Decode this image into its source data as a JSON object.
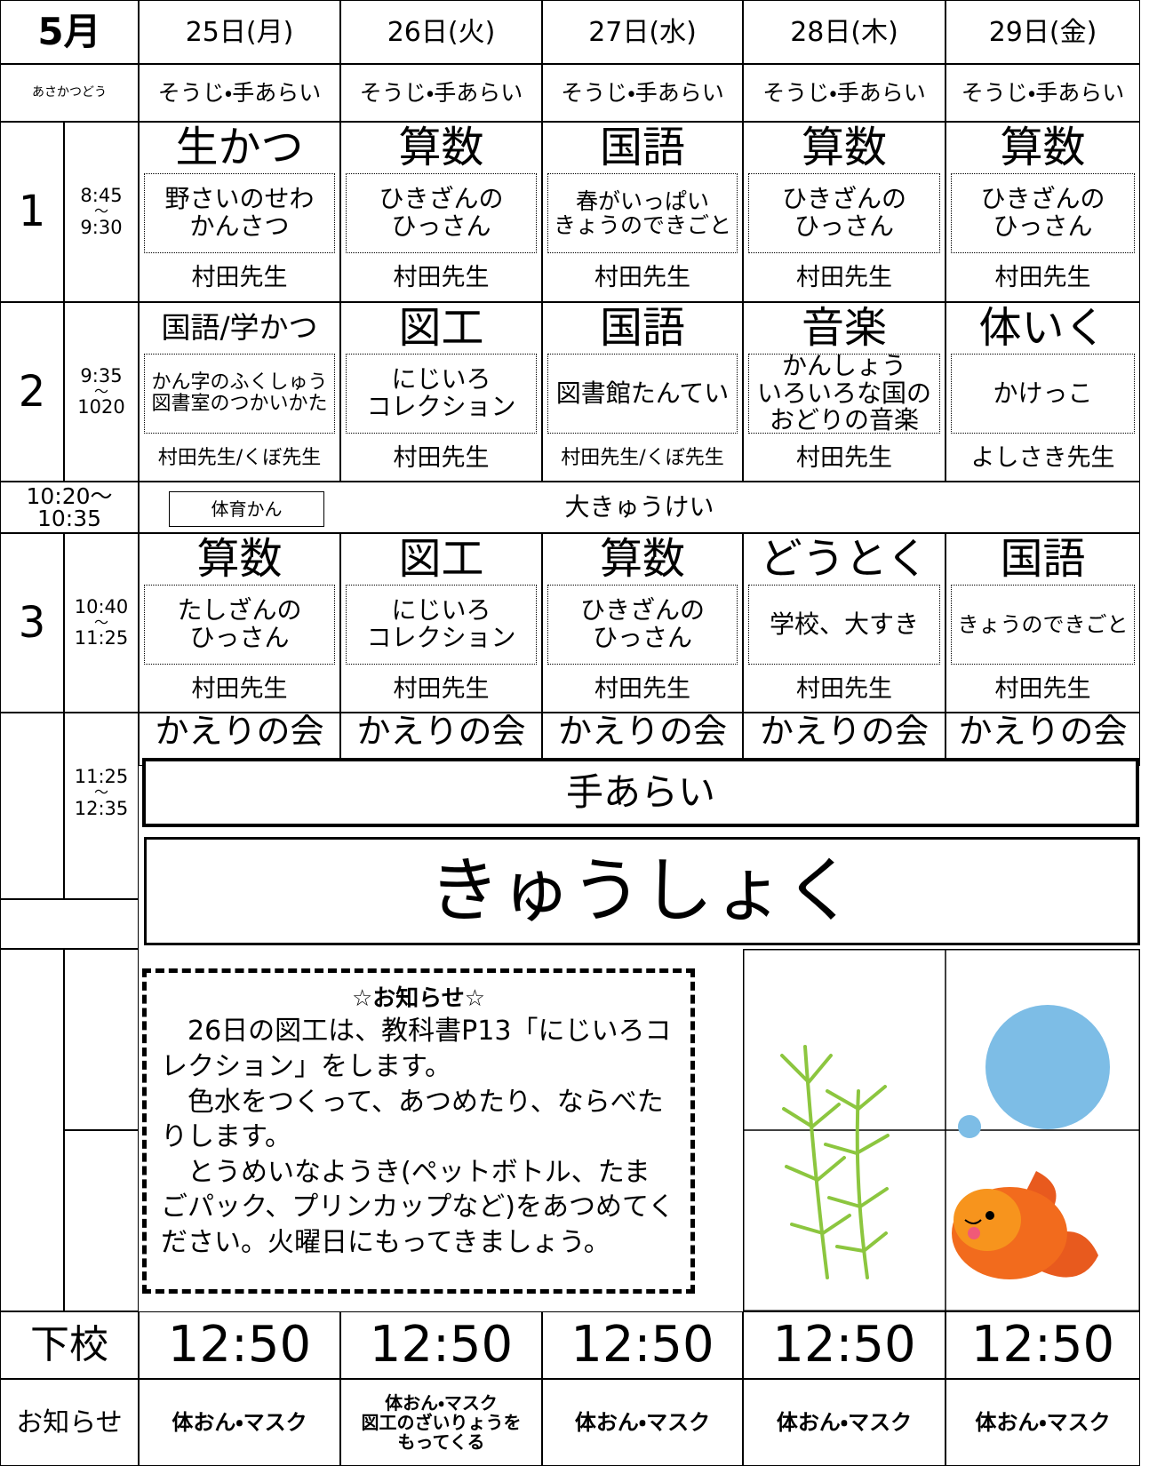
{
  "header": {
    "month": "5月",
    "days": [
      "25日(月)",
      "26日(火)",
      "27日(水)",
      "28日(木)",
      "29日(金)"
    ]
  },
  "morning": {
    "label": "あさかつどう",
    "items": [
      "そうじ・手あらい",
      "そうじ・手あらい",
      "そうじ・手あらい",
      "そうじ・手あらい",
      "そうじ・手あらい"
    ]
  },
  "periods": [
    {
      "number": "1",
      "time_start": "8:45",
      "tilde": "～",
      "time_end": "9:30",
      "classes": [
        {
          "subject": "生かつ",
          "content": "野さいのせわ\nかんさつ",
          "teacher": "村田先生"
        },
        {
          "subject": "算数",
          "content": "ひきざんの\nひっさん",
          "teacher": "村田先生"
        },
        {
          "subject": "国語",
          "content": "春がいっぱい\nきょうのできごと",
          "teacher": "村田先生"
        },
        {
          "subject": "算数",
          "content": "ひきざんの\nひっさん",
          "teacher": "村田先生"
        },
        {
          "subject": "算数",
          "content": "ひきざんの\nひっさん",
          "teacher": "村田先生"
        }
      ]
    },
    {
      "number": "2",
      "time_start": "9:35",
      "tilde": "～",
      "time_end": "1020",
      "classes": [
        {
          "subject": "国語/学かつ",
          "content": "かん字のふくしゅう\n図書室のつかいかた",
          "teacher": "村田先生/くぼ先生"
        },
        {
          "subject": "図工",
          "content": "にじいろ\nコレクション",
          "teacher": "村田先生"
        },
        {
          "subject": "国語",
          "content": "図書館たんてい",
          "teacher": "村田先生/くぼ先生"
        },
        {
          "subject": "音楽",
          "content": "かんしょう\nいろいろな国の\nおどりの音楽",
          "teacher": "村田先生"
        },
        {
          "subject": "体いく",
          "content": "かけっこ",
          "teacher": "よしさき先生"
        }
      ]
    },
    {
      "number": "3",
      "time_start": "10:40",
      "tilde": "～",
      "time_end": "11:25",
      "classes": [
        {
          "subject": "算数",
          "content": "たしざんの\nひっさん",
          "teacher": "村田先生"
        },
        {
          "subject": "図工",
          "content": "にじいろ\nコレクション",
          "teacher": "村田先生"
        },
        {
          "subject": "算数",
          "content": "ひきざんの\nひっさん",
          "teacher": "村田先生"
        },
        {
          "subject": "どうとく",
          "content": "学校、大すき",
          "teacher": "村田先生"
        },
        {
          "subject": "国語",
          "content": "きょうのできごと",
          "teacher": "村田先生"
        }
      ]
    }
  ],
  "break": {
    "time": "10:20～\n10:35",
    "place": "体育かん",
    "label": "大きゅうけい"
  },
  "lunch": {
    "time_start": "11:25",
    "tilde": "～",
    "time_end": "12:35",
    "closing": [
      "かえりの会",
      "かえりの会",
      "かえりの会",
      "かえりの会",
      "かえりの会"
    ],
    "handwash": "手あらい",
    "meal": "きゅうしょく"
  },
  "notice": {
    "title": "☆お知らせ☆",
    "paragraphs": [
      "26日の図工は、教科書P13「にじいろコレクション」をします。",
      "色水をつくって、あつめたり、ならべたりします。",
      "とうめいなようき(ペットボトル、たまごパック、プリンカップなど)をあつめてください。火曜日にもってきましょう。"
    ]
  },
  "dismissal": {
    "label": "下校",
    "times": [
      "12:50",
      "12:50",
      "12:50",
      "12:50",
      "12:50"
    ]
  },
  "reminders": {
    "label": "お知らせ",
    "items": [
      "体おん・マスク",
      "体おん・マスク\n図工のざいりょうを\nもってくる",
      "体おん・マスク",
      "体おん・マスク",
      "体おん・マスク"
    ]
  }
}
